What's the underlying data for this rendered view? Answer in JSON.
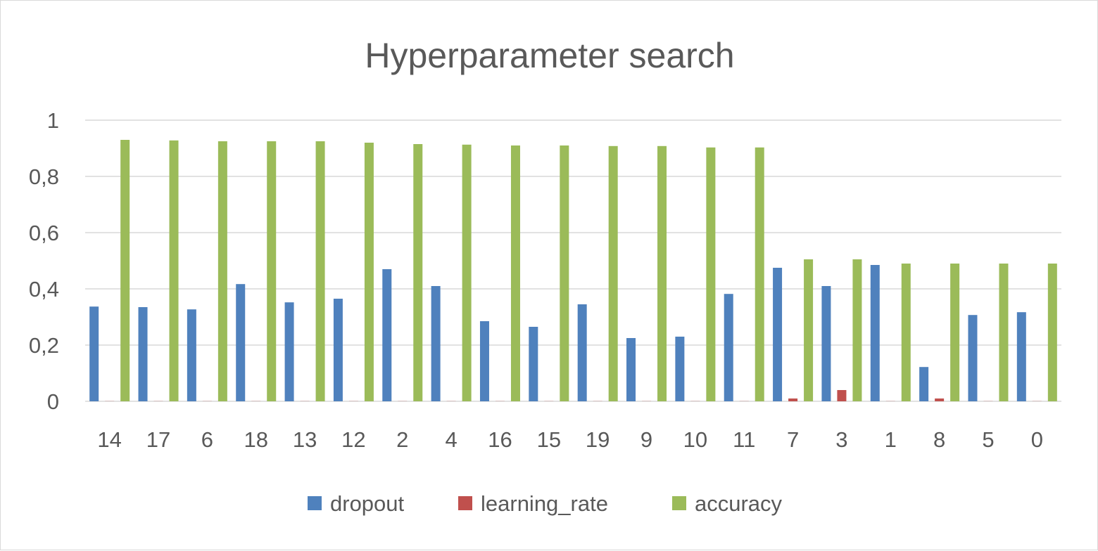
{
  "chart_data": {
    "type": "bar",
    "title": "Hyperparameter search",
    "xlabel": "",
    "ylabel": "",
    "ylim": [
      0,
      1
    ],
    "yticks": [
      "0",
      "0,2",
      "0,4",
      "0,6",
      "0,8",
      "1"
    ],
    "ytick_values": [
      0,
      0.2,
      0.4,
      0.6,
      0.8,
      1
    ],
    "grid": true,
    "legend_position": "bottom",
    "categories": [
      "14",
      "17",
      "6",
      "18",
      "13",
      "12",
      "2",
      "4",
      "16",
      "15",
      "19",
      "9",
      "10",
      "11",
      "7",
      "3",
      "1",
      "8",
      "5",
      "0"
    ],
    "series": [
      {
        "name": "dropout",
        "color": "#4f81bd",
        "values": [
          0.337,
          0.335,
          0.327,
          0.417,
          0.352,
          0.365,
          0.47,
          0.41,
          0.285,
          0.265,
          0.345,
          0.225,
          0.23,
          0.382,
          0.475,
          0.41,
          0.485,
          0.122,
          0.307,
          0.317
        ]
      },
      {
        "name": "learning_rate",
        "color": "#c0504d",
        "values": [
          0.0005,
          0.0005,
          0.0005,
          0.0005,
          0.0005,
          0.0005,
          0.0005,
          0.0005,
          0.0005,
          0.0005,
          0.0005,
          0.0005,
          0.0005,
          0.0005,
          0.01,
          0.04,
          0.0005,
          0.01,
          0.0005,
          0.0005
        ]
      },
      {
        "name": "accuracy",
        "color": "#9bbb59",
        "values": [
          0.93,
          0.928,
          0.925,
          0.925,
          0.925,
          0.92,
          0.915,
          0.913,
          0.91,
          0.91,
          0.908,
          0.908,
          0.903,
          0.903,
          0.505,
          0.505,
          0.49,
          0.49,
          0.49,
          0.49
        ]
      }
    ]
  }
}
